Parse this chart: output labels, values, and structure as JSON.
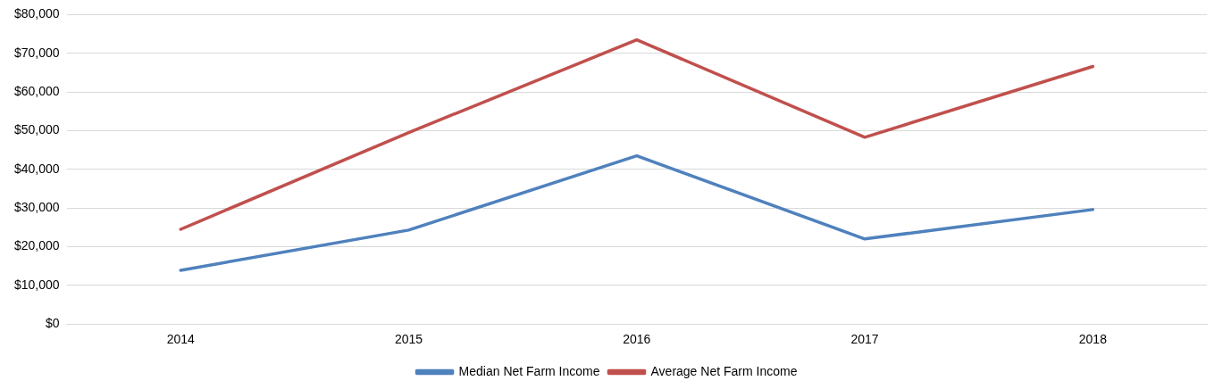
{
  "chart_data": {
    "type": "line",
    "categories": [
      "2014",
      "2015",
      "2016",
      "2017",
      "2018"
    ],
    "series": [
      {
        "name": "Median Net Farm Income",
        "color": "#4f81bd",
        "values": [
          13900,
          24300,
          43500,
          22000,
          29600
        ]
      },
      {
        "name": "Average Net Farm Income",
        "color": "#c0504d",
        "values": [
          24500,
          49500,
          73500,
          48300,
          66600
        ]
      }
    ],
    "ylim": [
      0,
      80000
    ],
    "yticks": [
      {
        "value": 0,
        "label": "$0"
      },
      {
        "value": 10000,
        "label": "$10,000"
      },
      {
        "value": 20000,
        "label": "$20,000"
      },
      {
        "value": 30000,
        "label": "$30,000"
      },
      {
        "value": 40000,
        "label": "$40,000"
      },
      {
        "value": 50000,
        "label": "$50,000"
      },
      {
        "value": 60000,
        "label": "$60,000"
      },
      {
        "value": 70000,
        "label": "$70,000"
      },
      {
        "value": 80000,
        "label": "$80,000"
      }
    ],
    "grid": "y",
    "legend": "bottom",
    "marker": "none",
    "line_style": "solid"
  }
}
